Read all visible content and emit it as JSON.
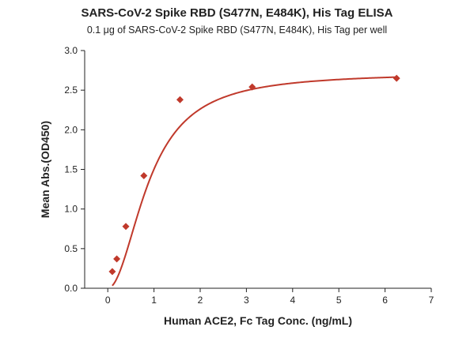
{
  "chart_data": {
    "type": "scatter",
    "title": "SARS-CoV-2 Spike RBD (S477N, E484K), His Tag ELISA",
    "subtitle": "0.1 μg of SARS-CoV-2 Spike RBD (S477N, E484K), His Tag per well",
    "xlabel": "Human ACE2, Fc Tag Conc. (ng/mL)",
    "ylabel": "Mean Abs.(OD450)",
    "xlim": [
      -0.5,
      7
    ],
    "ylim": [
      0,
      3.0
    ],
    "xticks": [
      "0",
      "1",
      "2",
      "3",
      "4",
      "5",
      "6",
      "7"
    ],
    "yticks": [
      "0.0",
      "0.5",
      "1.0",
      "1.5",
      "2.0",
      "2.5",
      "3.0"
    ],
    "grid": false,
    "colors": {
      "series": "#c0392b"
    },
    "series": [
      {
        "x": [
          0.098,
          0.195,
          0.391,
          0.781,
          1.563,
          3.125,
          6.25
        ],
        "y": [
          0.21,
          0.37,
          0.78,
          1.42,
          2.38,
          2.54,
          2.65
        ],
        "marker": "diamond",
        "fit": "four-parameter logistic curve"
      }
    ]
  }
}
